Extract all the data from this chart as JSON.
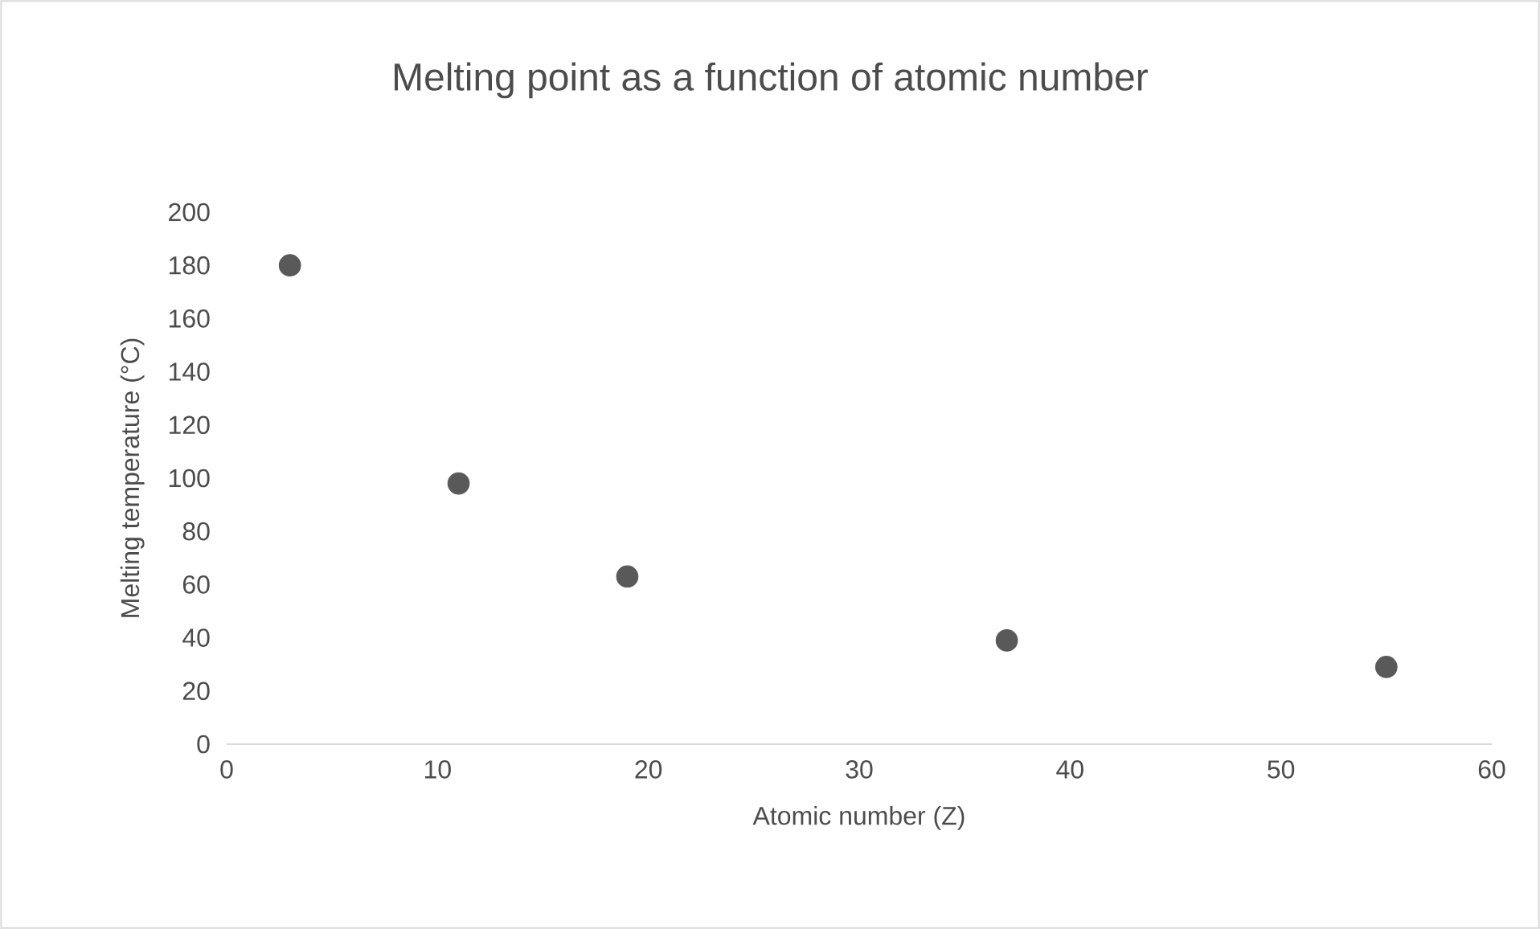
{
  "chart_data": {
    "type": "scatter",
    "title": "Melting point as a function of atomic number",
    "xlabel": "Atomic number (Z)",
    "ylabel": "Melting temperature (°C)",
    "x": [
      3,
      11,
      19,
      37,
      55
    ],
    "values": [
      180,
      98,
      63,
      39,
      29
    ],
    "color": "#595959",
    "marker": "circle",
    "xlim": [
      0,
      60
    ],
    "xticks": [
      0,
      10,
      20,
      30,
      40,
      50,
      60
    ],
    "ylim": [
      0,
      200
    ],
    "yticks": [
      0,
      20,
      40,
      60,
      80,
      100,
      120,
      140,
      160,
      180,
      200
    ]
  }
}
